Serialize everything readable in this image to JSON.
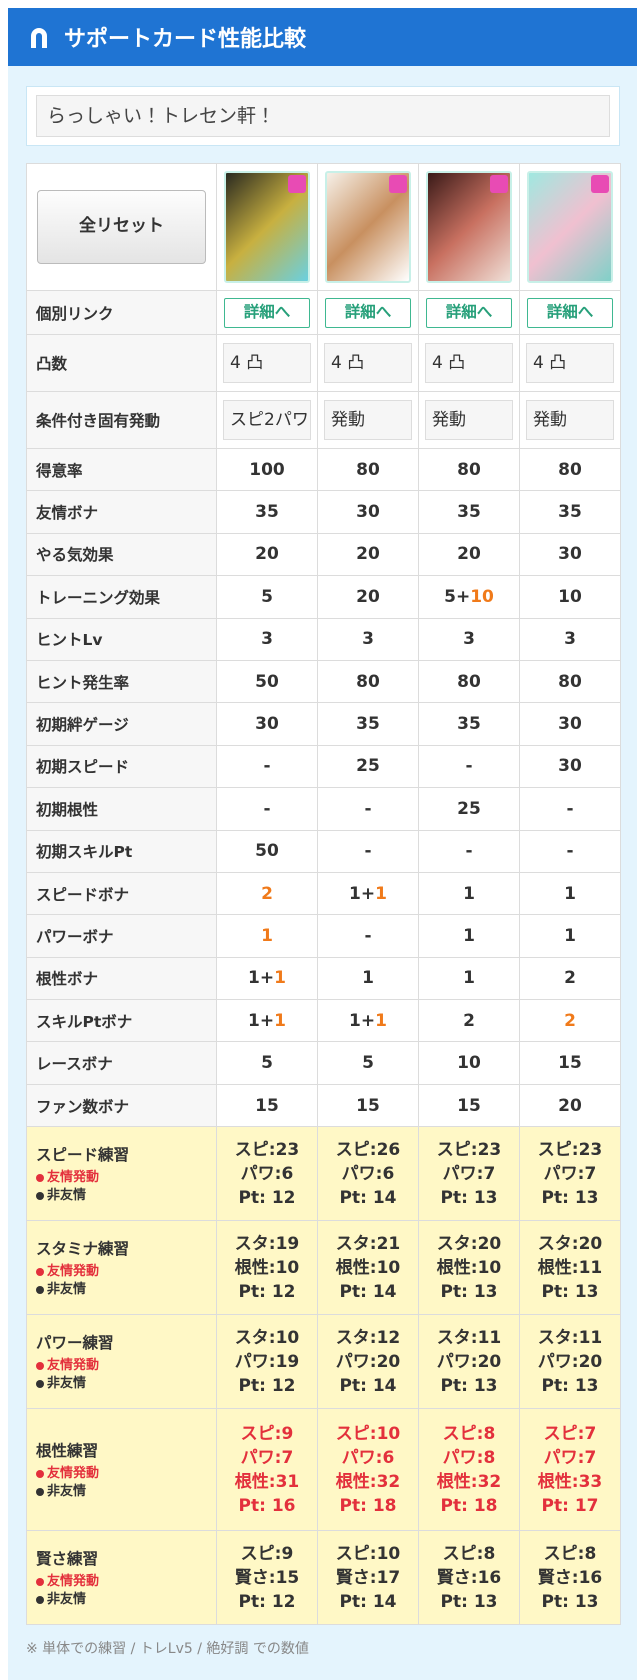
{
  "header": {
    "title": "サポートカード性能比較"
  },
  "search": {
    "value": "らっしゃい！トレセン軒！"
  },
  "table": {
    "reset": "全リセット",
    "controls": [
      {
        "label": "個別リンク",
        "kind": "link",
        "cells": [
          "詳細へ",
          "詳細へ",
          "詳細へ",
          "詳細へ"
        ]
      },
      {
        "label": "凸数",
        "kind": "select",
        "cells": [
          "4 凸",
          "4 凸",
          "4 凸",
          "4 凸"
        ]
      },
      {
        "label": "条件付き固有発動",
        "kind": "select",
        "cells": [
          "スピ2パワ",
          "発動",
          "発動",
          "発動"
        ]
      }
    ],
    "stats": [
      {
        "label": "得意率",
        "cells": [
          "100",
          "80",
          "80",
          "80"
        ]
      },
      {
        "label": "友情ボナ",
        "cells": [
          "35",
          "30",
          "35",
          "35"
        ]
      },
      {
        "label": "やる気効果",
        "cells": [
          "20",
          "20",
          "20",
          "30"
        ]
      },
      {
        "label": "トレーニング効果",
        "cells": [
          "5",
          "20",
          {
            "text": "5+",
            "accent": "10"
          },
          "10"
        ]
      },
      {
        "label": "ヒントLv",
        "cells": [
          "3",
          "3",
          "3",
          "3"
        ]
      },
      {
        "label": "ヒント発生率",
        "cells": [
          "50",
          "80",
          "80",
          "80"
        ]
      },
      {
        "label": "初期絆ゲージ",
        "cells": [
          "30",
          "35",
          "35",
          "30"
        ]
      },
      {
        "label": "初期スピード",
        "cells": [
          "-",
          "25",
          "-",
          "30"
        ]
      },
      {
        "label": "初期根性",
        "cells": [
          "-",
          "-",
          "25",
          "-"
        ]
      },
      {
        "label": "初期スキルPt",
        "cells": [
          "50",
          "-",
          "-",
          "-"
        ]
      },
      {
        "label": "スピードボナ",
        "cells": [
          {
            "accent": "2"
          },
          {
            "text": "1+",
            "accent": "1"
          },
          "1",
          "1"
        ]
      },
      {
        "label": "パワーボナ",
        "cells": [
          {
            "accent": "1"
          },
          "-",
          "1",
          "1"
        ]
      },
      {
        "label": "根性ボナ",
        "cells": [
          {
            "text": "1+",
            "accent": "1"
          },
          "1",
          "1",
          "2"
        ]
      },
      {
        "label": "スキルPtボナ",
        "cells": [
          {
            "text": "1+",
            "accent": "1"
          },
          {
            "text": "1+",
            "accent": "1"
          },
          "2",
          {
            "accent": "2"
          }
        ]
      },
      {
        "label": "レースボナ",
        "cells": [
          "5",
          "5",
          "10",
          "15"
        ]
      },
      {
        "label": "ファン数ボナ",
        "cells": [
          "15",
          "15",
          "15",
          "20"
        ]
      }
    ],
    "training": {
      "legend": {
        "friend": "友情発動",
        "normal": "非友情"
      },
      "rows": [
        {
          "label": "スピード練習",
          "friend": false,
          "cells": [
            [
              "スピ:23",
              "パワ:6",
              "Pt: 12"
            ],
            [
              "スピ:26",
              "パワ:6",
              "Pt: 14"
            ],
            [
              "スピ:23",
              "パワ:7",
              "Pt: 13"
            ],
            [
              "スピ:23",
              "パワ:7",
              "Pt: 13"
            ]
          ]
        },
        {
          "label": "スタミナ練習",
          "friend": false,
          "cells": [
            [
              "スタ:19",
              "根性:10",
              "Pt: 12"
            ],
            [
              "スタ:21",
              "根性:10",
              "Pt: 14"
            ],
            [
              "スタ:20",
              "根性:10",
              "Pt: 13"
            ],
            [
              "スタ:20",
              "根性:11",
              "Pt: 13"
            ]
          ]
        },
        {
          "label": "パワー練習",
          "friend": false,
          "cells": [
            [
              "スタ:10",
              "パワ:19",
              "Pt: 12"
            ],
            [
              "スタ:12",
              "パワ:20",
              "Pt: 14"
            ],
            [
              "スタ:11",
              "パワ:20",
              "Pt: 13"
            ],
            [
              "スタ:11",
              "パワ:20",
              "Pt: 13"
            ]
          ]
        },
        {
          "label": "根性練習",
          "friend": true,
          "cells": [
            [
              "スピ:9",
              "パワ:7",
              "根性:31",
              "Pt: 16"
            ],
            [
              "スピ:10",
              "パワ:6",
              "根性:32",
              "Pt: 18"
            ],
            [
              "スピ:8",
              "パワ:8",
              "根性:32",
              "Pt: 18"
            ],
            [
              "スピ:7",
              "パワ:7",
              "根性:33",
              "Pt: 17"
            ]
          ]
        },
        {
          "label": "賢さ練習",
          "friend": false,
          "cells": [
            [
              "スピ:9",
              "賢さ:15",
              "Pt: 12"
            ],
            [
              "スピ:10",
              "賢さ:17",
              "Pt: 14"
            ],
            [
              "スピ:8",
              "賢さ:16",
              "Pt: 13"
            ],
            [
              "スピ:8",
              "賢さ:16",
              "Pt: 13"
            ]
          ]
        }
      ]
    }
  },
  "footer": {
    "note": "※ 単体での練習 / トレLv5 / 絶好調 での数値"
  }
}
